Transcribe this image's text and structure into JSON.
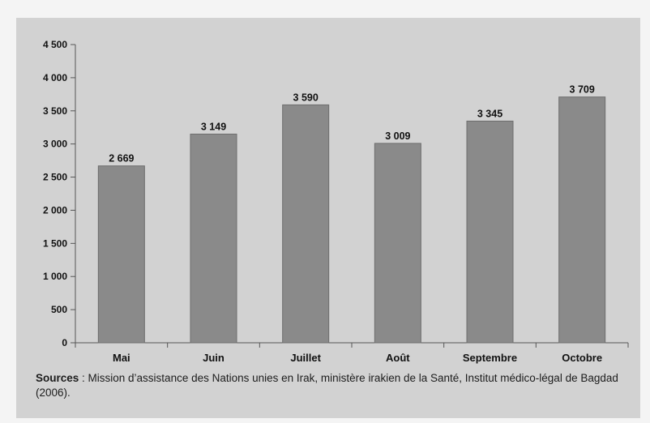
{
  "chart_data": {
    "type": "bar",
    "categories": [
      "Mai",
      "Juin",
      "Juillet",
      "Août",
      "Septembre",
      "Octobre"
    ],
    "values": [
      2669,
      3149,
      3590,
      3009,
      3345,
      3709
    ],
    "value_labels": [
      "2 669",
      "3 149",
      "3 590",
      "3 009",
      "3 345",
      "3 709"
    ],
    "y_ticks": [
      0,
      500,
      1000,
      1500,
      2000,
      2500,
      3000,
      3500,
      4000,
      4500
    ],
    "y_tick_labels": [
      "0",
      "500",
      "1 000",
      "1 500",
      "2 000",
      "2 500",
      "3 000",
      "3 500",
      "4 000",
      "4 500"
    ],
    "ylim": [
      0,
      4500
    ],
    "grid": false,
    "legend": "none",
    "title": "",
    "xlabel": "",
    "ylabel": "",
    "colors": {
      "bar": "#8a8a8a",
      "bar_edge": "#6e6e6e",
      "axis": "#555555",
      "text": "#111111",
      "panel": "#d2d2d2"
    }
  },
  "footer": {
    "sources_label": "Sources",
    "sources_text": " : Mission d’assistance des Nations unies en Irak, ministère irakien de la Santé, Institut médico-légal de Bagdad (2006)."
  }
}
